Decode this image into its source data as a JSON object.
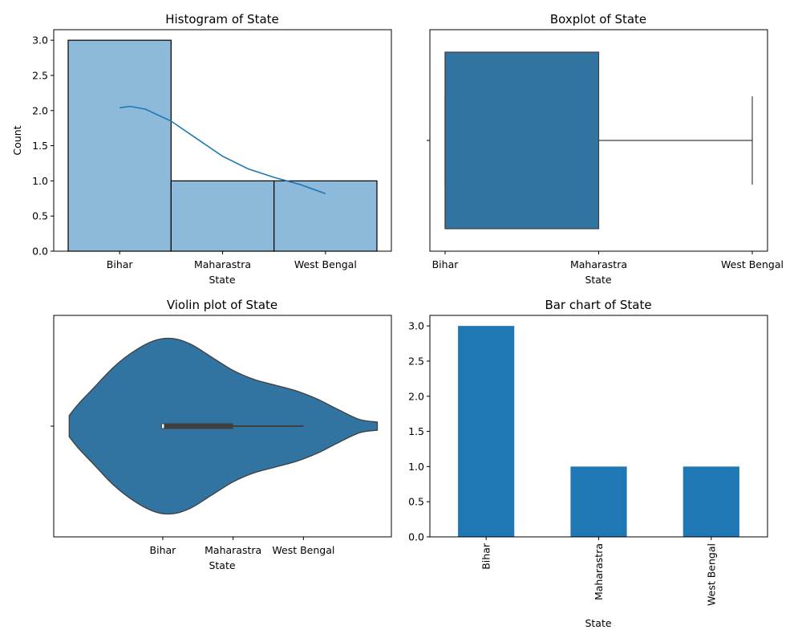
{
  "chart_data": [
    {
      "type": "histogram",
      "title": "Histogram of State",
      "xlabel": "State",
      "ylabel": "Count",
      "categories": [
        "Bihar",
        "Maharastra",
        "West Bengal"
      ],
      "values": [
        3,
        1,
        1
      ],
      "ylim": [
        0,
        3.15
      ],
      "yticks": [
        "0.0",
        "0.5",
        "1.0",
        "1.5",
        "2.0",
        "2.5",
        "3.0"
      ],
      "kde": {
        "x": [
          0,
          0.1,
          0.25,
          0.5,
          0.75,
          1,
          1.25,
          1.5,
          1.75,
          2
        ],
        "y": [
          2.04,
          2.06,
          2.02,
          1.85,
          1.6,
          1.35,
          1.17,
          1.05,
          0.95,
          0.82
        ]
      },
      "colors": {
        "bar": "#8db9da",
        "line": "#1f77b4"
      }
    },
    {
      "type": "boxplot",
      "title": "Boxplot of State",
      "xlabel": "State",
      "categories": [
        "Bihar",
        "Maharastra",
        "West Bengal"
      ],
      "stats": {
        "q1": 0,
        "median": 0,
        "q3": 1,
        "whisker_low": 0,
        "whisker_high": 2
      },
      "colors": {
        "box": "#3274a1"
      }
    },
    {
      "type": "violin",
      "title": "Violin plot of State",
      "xlabel": "State",
      "categories": [
        "Bihar",
        "Maharastra",
        "West Bengal"
      ],
      "category_positions": [
        0,
        1,
        2
      ],
      "xlim": [
        -1.55,
        3.25
      ],
      "density": {
        "x": [
          -1.33,
          -1.2,
          -1.0,
          -0.7,
          -0.4,
          -0.1,
          0.15,
          0.4,
          0.7,
          1.0,
          1.3,
          1.6,
          1.9,
          2.2,
          2.5,
          2.8,
          3.05
        ],
        "half_width": [
          0.13,
          0.27,
          0.45,
          0.72,
          0.92,
          1.05,
          1.07,
          1.0,
          0.84,
          0.68,
          0.57,
          0.5,
          0.43,
          0.33,
          0.2,
          0.08,
          0.05
        ]
      },
      "inner_box": {
        "q1": 0,
        "q3": 1,
        "whisker_low": 0,
        "whisker_high": 2,
        "median": 0
      },
      "colors": {
        "body": "#3274a1"
      }
    },
    {
      "type": "bar",
      "title": "Bar chart of State",
      "xlabel": "State",
      "categories": [
        "Bihar",
        "Maharastra",
        "West Bengal"
      ],
      "values": [
        3,
        1,
        1
      ],
      "ylim": [
        0,
        3.15
      ],
      "yticks": [
        "0.0",
        "0.5",
        "1.0",
        "1.5",
        "2.0",
        "2.5",
        "3.0"
      ],
      "colors": {
        "bar": "#1f77b4"
      }
    }
  ]
}
